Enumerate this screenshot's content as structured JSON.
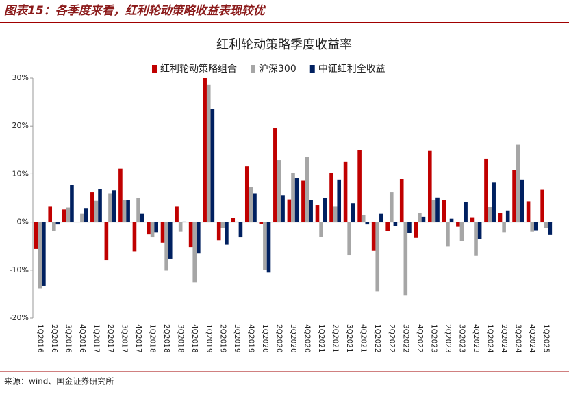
{
  "header": {
    "title": "图表15：各季度来看，红利轮动策略收益表现较优"
  },
  "source": "来源：wind、国金证券研究所",
  "chart_data": {
    "type": "bar",
    "title": "红利轮动策略季度收益率",
    "categories": [
      "1Q2016",
      "2Q2016",
      "3Q2016",
      "4Q2016",
      "1Q2017",
      "2Q2017",
      "3Q2017",
      "4Q2017",
      "1Q2018",
      "2Q2018",
      "3Q2018",
      "4Q2018",
      "1Q2019",
      "2Q2019",
      "3Q2019",
      "4Q2019",
      "1Q2020",
      "2Q2020",
      "3Q2020",
      "4Q2020",
      "1Q2021",
      "2Q2021",
      "3Q2021",
      "4Q2021",
      "1Q2022",
      "2Q2022",
      "3Q2022",
      "4Q2022",
      "1Q2023",
      "2Q2023",
      "3Q2023",
      "4Q2023",
      "1Q2024",
      "2Q2024",
      "3Q2024",
      "4Q2024",
      "1Q2025"
    ],
    "series": [
      {
        "name": "红利轮动策略组合",
        "color": "#c00000",
        "values": [
          -5.6,
          3.3,
          2.6,
          0,
          6.2,
          -7.9,
          11.1,
          -6.1,
          -2.5,
          -4.3,
          3.3,
          -5.2,
          30.0,
          -3.8,
          0.9,
          11.6,
          -0.4,
          19.6,
          4.7,
          8.7,
          3.5,
          10.2,
          12.5,
          15.0,
          -6.0,
          -1.9,
          9.0,
          -3.3,
          14.8,
          4.5,
          -1.0,
          1.0,
          13.2,
          1.9,
          10.9,
          4.3,
          6.7
        ]
      },
      {
        "name": "沪深300",
        "color": "#a6a6a6",
        "values": [
          -13.8,
          -1.8,
          3.0,
          1.7,
          4.4,
          6.0,
          4.5,
          5.0,
          -3.2,
          -10.1,
          -2.0,
          -12.5,
          28.6,
          -1.2,
          0.1,
          7.3,
          -10.0,
          12.9,
          10.2,
          13.6,
          -3.1,
          3.3,
          -6.9,
          1.5,
          -14.5,
          6.2,
          -15.2,
          1.8,
          4.6,
          -5.1,
          -4.0,
          -7.0,
          3.1,
          -2.1,
          16.1,
          -2.0,
          -1.2
        ]
      },
      {
        "name": "中证红利全收益",
        "color": "#002060",
        "values": [
          -13.3,
          -0.5,
          7.7,
          2.9,
          6.9,
          6.6,
          4.5,
          1.7,
          -2.1,
          -7.6,
          0.1,
          -6.5,
          23.5,
          -4.7,
          -3.2,
          6.0,
          -10.5,
          5.6,
          9.2,
          4.6,
          5.0,
          8.8,
          3.9,
          -0.5,
          1.7,
          -0.9,
          -2.3,
          1.1,
          5.1,
          0.7,
          4.2,
          -3.6,
          8.3,
          2.4,
          8.8,
          -1.7,
          -2.6
        ]
      }
    ],
    "ylim": [
      -20,
      30
    ],
    "yticks": [
      {
        "value": -20,
        "label": "-20%"
      },
      {
        "value": -10,
        "label": "-10%"
      },
      {
        "value": 0,
        "label": "0%"
      },
      {
        "value": 10,
        "label": "10%"
      },
      {
        "value": 20,
        "label": "20%"
      },
      {
        "value": 30,
        "label": "30%"
      }
    ],
    "legend": "top"
  }
}
